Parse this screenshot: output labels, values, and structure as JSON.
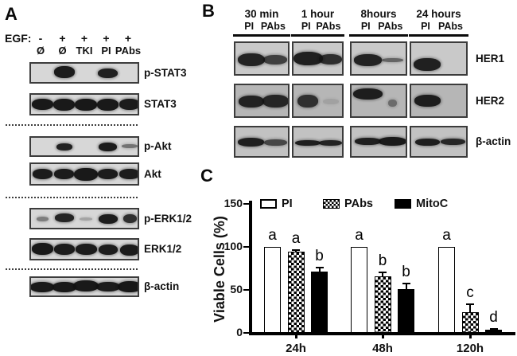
{
  "figure": {
    "panel_a_label": "A",
    "panel_b_label": "B",
    "panel_c_label": "C"
  },
  "panel_a": {
    "egf_label": "EGF:",
    "egf_signs": [
      "-",
      "+",
      "+",
      "+",
      "+"
    ],
    "lane_labels": [
      "Ø",
      "Ø",
      "TKI",
      "PI",
      "PAbs"
    ],
    "blots": [
      {
        "label": "p-STAT3",
        "bands": [
          [
            1,
            26,
            15,
            0.95,
            -1
          ],
          [
            3,
            25,
            12,
            0.92,
            0
          ]
        ]
      },
      {
        "label": "STAT3",
        "bands": [
          [
            0,
            27,
            14,
            0.96,
            0
          ],
          [
            1,
            27,
            15,
            0.96,
            0
          ],
          [
            2,
            28,
            15,
            0.97,
            0
          ],
          [
            3,
            27,
            15,
            0.96,
            0
          ],
          [
            4,
            26,
            14,
            0.95,
            0
          ]
        ]
      },
      {
        "label": "p-Akt",
        "bands": [
          [
            1,
            20,
            9,
            0.92,
            0
          ],
          [
            3,
            23,
            11,
            0.95,
            0
          ],
          [
            4,
            20,
            5,
            0.5,
            -1
          ]
        ]
      },
      {
        "label": "Akt",
        "bands": [
          [
            0,
            25,
            13,
            0.95,
            0
          ],
          [
            1,
            25,
            13,
            0.95,
            0
          ],
          [
            2,
            30,
            16,
            0.96,
            0
          ],
          [
            3,
            25,
            13,
            0.95,
            0
          ],
          [
            4,
            26,
            13,
            0.95,
            0
          ]
        ]
      },
      {
        "label": "p-ERK1/2",
        "bands": [
          [
            0,
            15,
            6,
            0.45,
            0
          ],
          [
            1,
            24,
            11,
            0.9,
            -1
          ],
          [
            2,
            16,
            4,
            0.25,
            0
          ],
          [
            3,
            24,
            12,
            0.95,
            0
          ],
          [
            4,
            17,
            11,
            0.85,
            0
          ]
        ]
      },
      {
        "label": "ERK1/2",
        "bands": [
          [
            0,
            27,
            15,
            0.96,
            -1
          ],
          [
            1,
            26,
            14,
            0.95,
            0
          ],
          [
            2,
            27,
            14,
            0.95,
            0
          ],
          [
            3,
            24,
            13,
            0.94,
            0
          ],
          [
            4,
            24,
            14,
            0.95,
            1
          ]
        ]
      },
      {
        "label": "β-actin",
        "bands": [
          [
            0,
            30,
            13,
            0.96,
            0
          ],
          [
            1,
            30,
            13,
            0.96,
            0
          ],
          [
            2,
            32,
            14,
            0.96,
            -1
          ],
          [
            3,
            30,
            12,
            0.95,
            0
          ],
          [
            4,
            30,
            14,
            0.97,
            0
          ]
        ]
      }
    ]
  },
  "panel_b": {
    "time_labels": [
      "30 min",
      "1 hour",
      "8hours",
      "24 hours"
    ],
    "lane_labels": [
      "PI",
      "PAbs"
    ],
    "rows": [
      {
        "label": "HER1",
        "bg": "#c9c9c9",
        "groups": [
          [
            [
              0,
              34,
              16,
              0.9,
              1
            ],
            [
              1,
              30,
              12,
              0.75,
              1
            ]
          ],
          [
            [
              0,
              37,
              17,
              0.92,
              0
            ],
            [
              1,
              29,
              13,
              0.85,
              1
            ]
          ],
          [
            [
              0,
              35,
              15,
              0.9,
              2
            ],
            [
              1,
              27,
              5,
              0.55,
              2
            ]
          ],
          [
            [
              0,
              34,
              16,
              0.92,
              7
            ]
          ]
        ]
      },
      {
        "label": "HER2",
        "bg": "#b6b6b6",
        "groups": [
          [
            [
              0,
              32,
              15,
              0.9,
              1
            ],
            [
              1,
              33,
              16,
              0.88,
              0
            ]
          ],
          [
            [
              0,
              26,
              16,
              0.82,
              0
            ],
            [
              1,
              20,
              7,
              0.12,
              1
            ]
          ],
          [
            [
              0,
              37,
              14,
              0.93,
              -9
            ],
            [
              1,
              11,
              9,
              0.45,
              3
            ]
          ],
          [
            [
              0,
              33,
              15,
              0.93,
              0
            ]
          ]
        ]
      },
      {
        "label": "β-actin",
        "bg": "#c2c2c2",
        "groups": [
          [
            [
              0,
              33,
              11,
              0.92,
              0
            ],
            [
              1,
              29,
              8,
              0.7,
              1
            ]
          ],
          [
            [
              0,
              32,
              7,
              0.92,
              1
            ],
            [
              1,
              29,
              7,
              0.9,
              1
            ]
          ],
          [
            [
              0,
              33,
              9,
              0.92,
              -1
            ],
            [
              1,
              35,
              11,
              0.95,
              -1
            ]
          ],
          [
            [
              0,
              31,
              9,
              0.92,
              0
            ],
            [
              1,
              31,
              8,
              0.88,
              0
            ]
          ]
        ]
      }
    ]
  },
  "chart_data": {
    "type": "bar",
    "title": "",
    "ylabel": "Viable Cells (%)",
    "xlabel": "",
    "ylim": [
      0,
      150
    ],
    "yticks": [
      0,
      50,
      100,
      150
    ],
    "categories": [
      "24h",
      "48h",
      "120h"
    ],
    "series": [
      {
        "name": "PI",
        "style": "open",
        "values": [
          100,
          100,
          100
        ],
        "errors": [
          0,
          0,
          0
        ],
        "letters": [
          "a",
          "a",
          "a"
        ]
      },
      {
        "name": "PAbs",
        "style": "checker",
        "values": [
          94,
          66,
          24
        ],
        "errors": [
          2,
          4,
          9
        ],
        "letters": [
          "a",
          "b",
          "c"
        ]
      },
      {
        "name": "MitoC",
        "style": "solid",
        "values": [
          71,
          51,
          4
        ],
        "errors": [
          5,
          6,
          1
        ],
        "letters": [
          "b",
          "b",
          "d"
        ]
      }
    ],
    "legend_position": "top",
    "grid": false,
    "colors": {
      "open": "#ffffff",
      "solid": "#000000",
      "axis": "#000000"
    }
  }
}
